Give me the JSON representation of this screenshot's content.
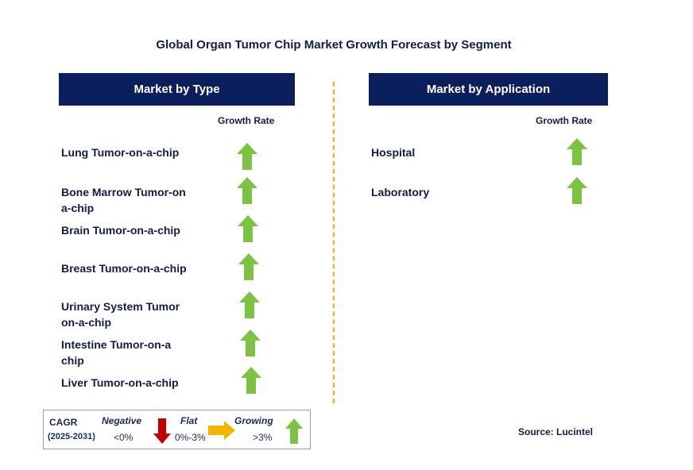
{
  "title": "Global Organ Tumor Chip Market Growth Forecast by Segment",
  "left_panel": {
    "header": "Market by Type",
    "growth_label": "Growth Rate",
    "items": [
      {
        "label": "Lung Tumor-on-a-chip",
        "trend": "growing"
      },
      {
        "label": "Bone Marrow Tumor-on\na-chip",
        "trend": "growing"
      },
      {
        "label": "Brain Tumor-on-a-chip",
        "trend": "growing"
      },
      {
        "label": "Breast Tumor-on-a-chip",
        "trend": "growing"
      },
      {
        "label": "Urinary System Tumor\non-a-chip",
        "trend": "growing"
      },
      {
        "label": "Intestine Tumor-on-a\nchip",
        "trend": "growing"
      },
      {
        "label": "Liver Tumor-on-a-chip",
        "trend": "growing"
      }
    ]
  },
  "right_panel": {
    "header": "Market by Application",
    "growth_label": "Growth Rate",
    "items": [
      {
        "label": "Hospital",
        "trend": "growing"
      },
      {
        "label": "Laboratory",
        "trend": "growing"
      }
    ]
  },
  "legend": {
    "cagr": "CAGR",
    "period": "(2025-2031)",
    "negative": "Negative",
    "negative_range": "<0%",
    "flat": "Flat",
    "flat_range": "0%-3%",
    "growing": "Growing",
    "growing_range": ">3%",
    "colors": {
      "growing": "#7dc242",
      "negative": "#c00000",
      "flat": "#f5b400"
    }
  },
  "source": "Source: Lucintel"
}
